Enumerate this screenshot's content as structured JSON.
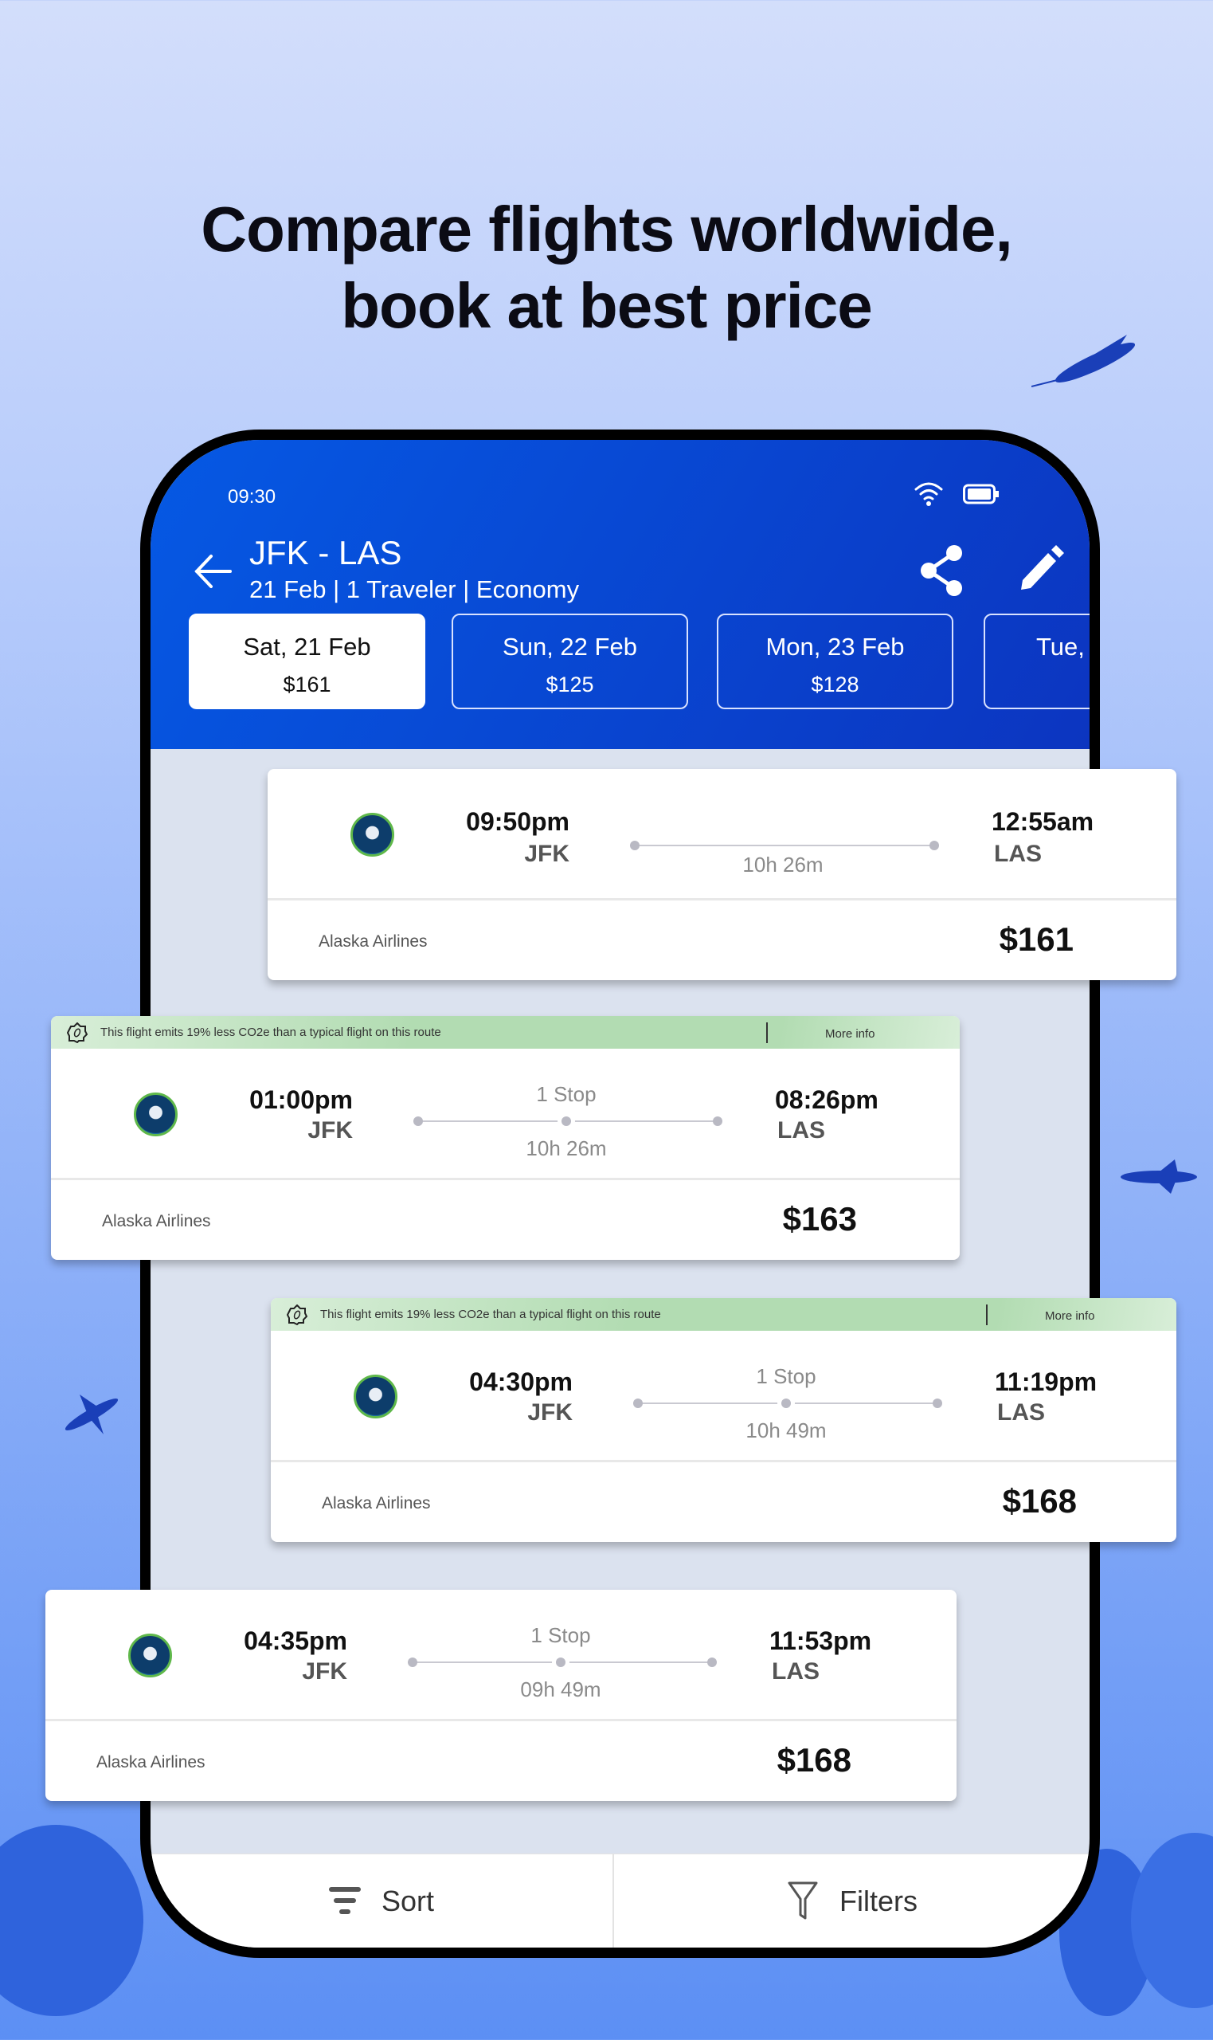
{
  "headline": {
    "line1": "Compare flights worldwide,",
    "line2": "book at best price"
  },
  "status": {
    "time": "09:30"
  },
  "header": {
    "title": "JFK - LAS",
    "subtitle": "21 Feb | 1 Traveler | Economy"
  },
  "dates": [
    {
      "label": "Sat, 21 Feb",
      "price": "$161",
      "selected": true
    },
    {
      "label": "Sun, 22 Feb",
      "price": "$125"
    },
    {
      "label": "Mon, 23 Feb",
      "price": "$128"
    },
    {
      "label": "Tue,",
      "price": ""
    }
  ],
  "flights": [
    {
      "dep_time": "09:50pm",
      "dep_code": "JFK",
      "arr_time": "12:55am",
      "arr_code": "LAS",
      "duration": "10h 26m",
      "stops": "",
      "airline": "Alaska Airlines",
      "price": "$161",
      "eco": false
    },
    {
      "dep_time": "01:00pm",
      "dep_code": "JFK",
      "arr_time": "08:26pm",
      "arr_code": "LAS",
      "duration": "10h 26m",
      "stops": "1 Stop",
      "airline": "Alaska Airlines",
      "price": "$163",
      "eco": true
    },
    {
      "dep_time": "04:30pm",
      "dep_code": "JFK",
      "arr_time": "11:19pm",
      "arr_code": "LAS",
      "duration": "10h 49m",
      "stops": "1 Stop",
      "airline": "Alaska Airlines",
      "price": "$168",
      "eco": true
    },
    {
      "dep_time": "04:35pm",
      "dep_code": "JFK",
      "arr_time": "11:53pm",
      "arr_code": "LAS",
      "duration": "09h 49m",
      "stops": "1 Stop",
      "airline": "Alaska Airlines",
      "price": "$168",
      "eco": false
    }
  ],
  "eco_banner": {
    "text": "This flight emits 19% less CO2e than a typical flight on this route",
    "more": "More info"
  },
  "bottom": {
    "sort": "Sort",
    "filters": "Filters"
  },
  "colors": {
    "header": "#0a47d6",
    "eco": "#b2dcb2",
    "background": "#8fb1f8"
  }
}
